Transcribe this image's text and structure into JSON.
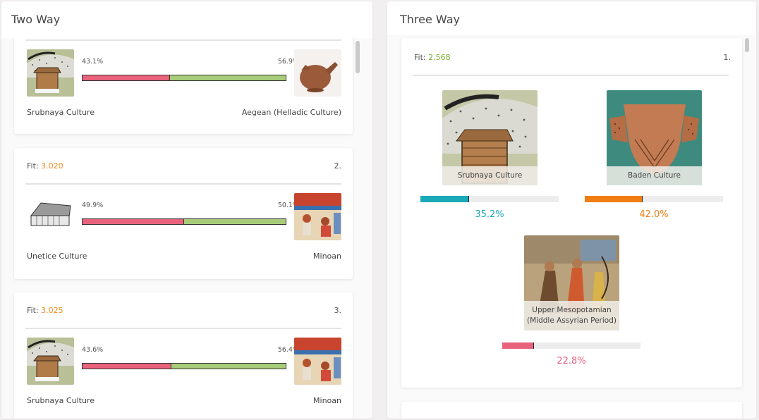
{
  "two_way": {
    "title": "Two Way",
    "cards": [
      {
        "left_pct": "43.1%",
        "right_pct": "56.9%",
        "left_value": 43.1,
        "left_label": "Srubnaya Culture",
        "right_label": "Aegean (Helladic Culture)"
      },
      {
        "fit_label": "Fit:",
        "fit_value": "3.020",
        "rank": "2.",
        "left_pct": "49.9%",
        "right_pct": "50.1%",
        "left_value": 49.9,
        "left_label": "Unetice Culture",
        "right_label": "Minoan"
      },
      {
        "fit_label": "Fit:",
        "fit_value": "3.025",
        "rank": "3.",
        "left_pct": "43.6%",
        "right_pct": "56.4%",
        "left_value": 43.6,
        "left_label": "Srubnaya Culture",
        "right_label": "Minoan"
      }
    ]
  },
  "three_way": {
    "title": "Three Way",
    "card": {
      "fit_label": "Fit:",
      "fit_value": "2.568",
      "rank": "1.",
      "populations": [
        {
          "name": "Srubnaya Culture",
          "pct": "35.2%",
          "value": 35.2,
          "color": "#1aa9b8"
        },
        {
          "name": "Baden Culture",
          "pct": "42.0%",
          "value": 42.0,
          "color": "#f07d12"
        },
        {
          "name": "Upper Mesopotamian (Middle Assyrian Period)",
          "pct": "22.8%",
          "value": 22.8,
          "color": "#e8627d"
        }
      ]
    }
  },
  "colors": {
    "fit_orange": "#f08a1d",
    "fit_green": "#7ab32e",
    "bar_pink": "#e9637d",
    "bar_green": "#a8cc7a"
  }
}
